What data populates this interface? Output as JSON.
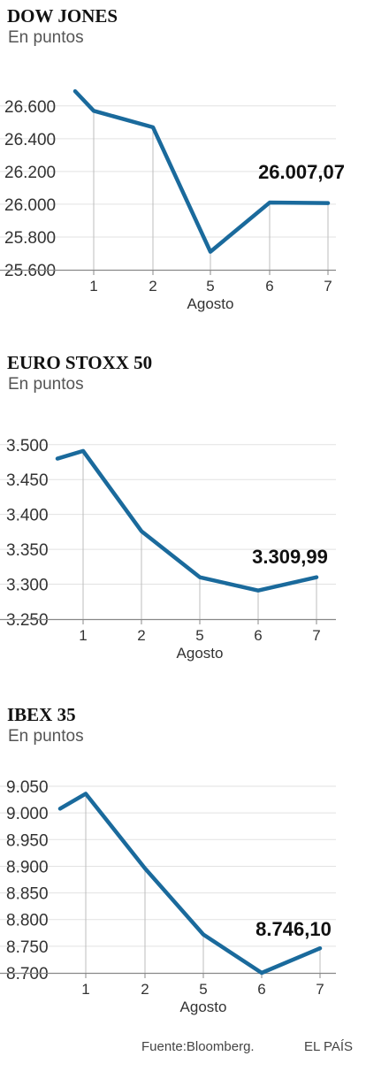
{
  "colors": {
    "line": "#1a6a9c",
    "grid": "#e2e2e2",
    "axis": "#888888",
    "drop": "#bdbdbd"
  },
  "chart_data": [
    {
      "type": "line",
      "title": "DOW JONES",
      "subtitle": "En puntos",
      "categories": [
        "1",
        "2",
        "5",
        "6",
        "7"
      ],
      "xlabel": "Agosto",
      "yticks": [
        "26.600",
        "26.400",
        "26.200",
        "26.000",
        "25.800",
        "25.600"
      ],
      "ytick_values": [
        26600,
        26400,
        26200,
        26000,
        25800,
        25600
      ],
      "ylim": [
        25600,
        26750
      ],
      "start_value": 26690,
      "values": [
        26570,
        26470,
        25710,
        26010,
        26007.07
      ],
      "last_label": "26.007,07"
    },
    {
      "type": "line",
      "title": "EURO STOXX 50",
      "subtitle": "En puntos",
      "categories": [
        "1",
        "2",
        "5",
        "6",
        "7"
      ],
      "xlabel": "Agosto",
      "yticks": [
        "3.500",
        "3.450",
        "3.400",
        "3.350",
        "3.300",
        "3.250"
      ],
      "ytick_values": [
        3500,
        3450,
        3400,
        3350,
        3300,
        3250
      ],
      "ylim": [
        3250,
        3520
      ],
      "start_value": 3480,
      "values": [
        3491,
        3376,
        3310,
        3291,
        3309.99
      ],
      "last_label": "3.309,99"
    },
    {
      "type": "line",
      "title": "IBEX 35",
      "subtitle": "En puntos",
      "categories": [
        "1",
        "2",
        "5",
        "6",
        "7"
      ],
      "xlabel": "Agosto",
      "yticks": [
        "9.050",
        "9.000",
        "8.950",
        "8.900",
        "8.850",
        "8.800",
        "8.750",
        "8.700"
      ],
      "ytick_values": [
        9050,
        9000,
        8950,
        8900,
        8850,
        8800,
        8750,
        8700
      ],
      "ylim": [
        8700,
        9060
      ],
      "start_value": 9008,
      "values": [
        9036,
        8896,
        8772,
        8700,
        8746.1
      ],
      "last_label": "8.746,10"
    }
  ],
  "footer": {
    "source": "Fuente:Bloomberg.",
    "brand": "EL PAÍS"
  }
}
